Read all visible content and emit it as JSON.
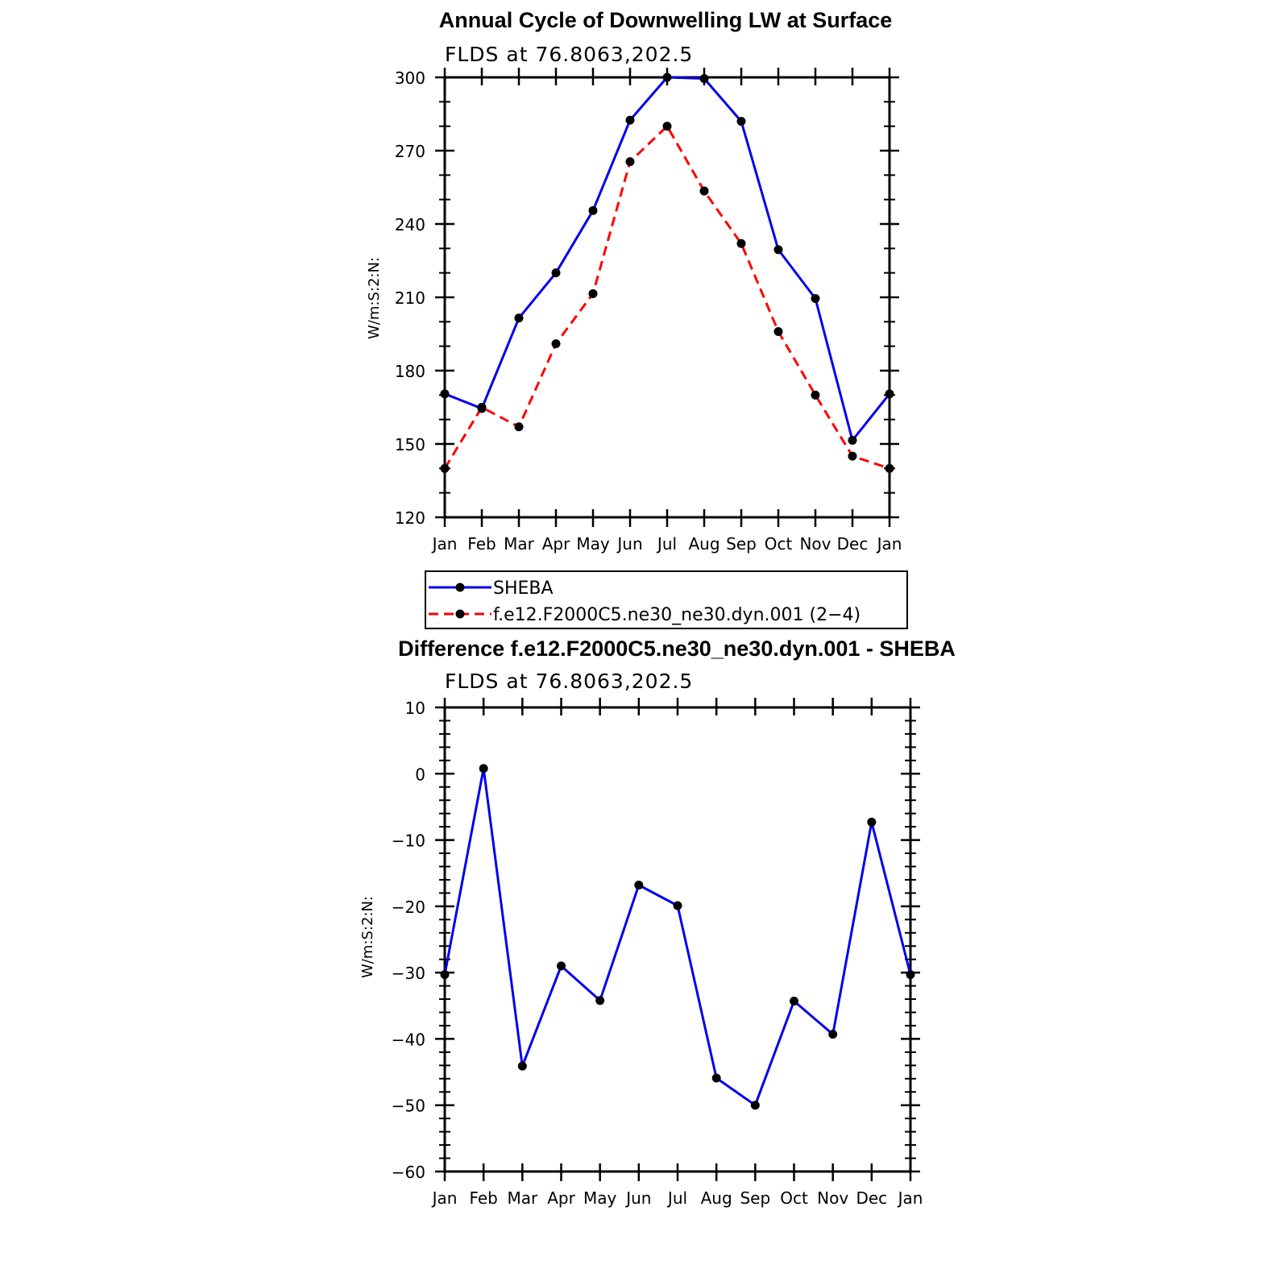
{
  "chart_data": [
    {
      "type": "line",
      "title": "Annual Cycle of Downwelling LW at Surface",
      "subtitle": "FLDS at 76.8063,202.5",
      "ylabel": "W/m:S:2:N:",
      "xlabel": "",
      "categories": [
        "Jan",
        "Feb",
        "Mar",
        "Apr",
        "May",
        "Jun",
        "Jul",
        "Aug",
        "Sep",
        "Oct",
        "Nov",
        "Dec",
        "Jan"
      ],
      "ylim": [
        120,
        300
      ],
      "yticks": [
        "120",
        "150",
        "180",
        "210",
        "240",
        "270",
        "300"
      ],
      "grid": false,
      "legend": "below",
      "series": [
        {
          "name": "SHEBA",
          "color": "#0000ee",
          "dash": "solid",
          "values": [
            170.5,
            164.5,
            201.5,
            220.0,
            245.5,
            282.5,
            300.0,
            299.5,
            282.0,
            229.5,
            209.5,
            151.5,
            170.5
          ]
        },
        {
          "name": "f.e12.F2000C5.ne30_ne30.dyn.001 (2−4)",
          "color": "#ff0000",
          "dash": "dashed",
          "values": [
            140.0,
            165.0,
            157.0,
            191.0,
            211.5,
            265.5,
            280.0,
            253.5,
            232.0,
            196.0,
            170.0,
            145.0,
            140.0
          ]
        }
      ]
    },
    {
      "type": "line",
      "title": "Difference f.e12.F2000C5.ne30_ne30.dyn.001 - SHEBA",
      "subtitle": "FLDS at 76.8063,202.5",
      "ylabel": "W/m:S:2:N:",
      "xlabel": "",
      "categories": [
        "Jan",
        "Feb",
        "Mar",
        "Apr",
        "May",
        "Jun",
        "Jul",
        "Aug",
        "Sep",
        "Oct",
        "Nov",
        "Dec",
        "Jan"
      ],
      "ylim": [
        -60,
        10
      ],
      "yticks": [
        "−60",
        "−50",
        "−40",
        "−30",
        "−20",
        "−10",
        "0",
        "10"
      ],
      "grid": false,
      "series": [
        {
          "color": "#0000ee",
          "dash": "solid",
          "values": [
            -30.3,
            0.8,
            -44.1,
            -29.0,
            -34.2,
            -16.8,
            -19.9,
            -45.9,
            -50.0,
            -34.3,
            -39.3,
            -7.3,
            -30.3
          ]
        }
      ]
    }
  ]
}
